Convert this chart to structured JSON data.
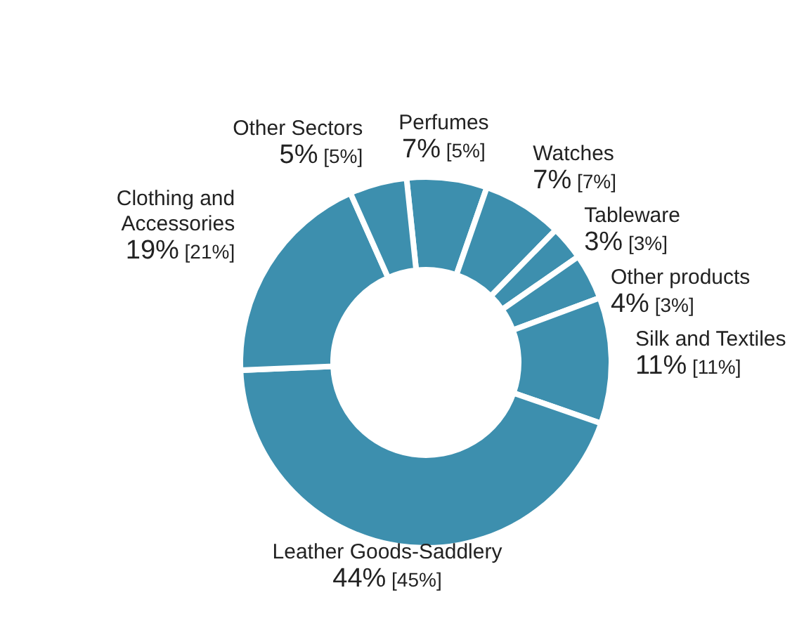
{
  "chart_data": {
    "type": "donut",
    "categories": [
      "Perfumes",
      "Watches",
      "Tableware",
      "Other products",
      "Silk and Textiles",
      "Leather Goods-Saddlery",
      "Clothing and Accessories",
      "Other Sectors"
    ],
    "values": [
      7,
      7,
      3,
      4,
      11,
      44,
      19,
      5
    ],
    "value_labels": [
      "7% [5%]",
      "7% [7%]",
      "3% [3%]",
      "4% [3%]",
      "11% [11%]",
      "44% [45%]",
      "19% [21%]",
      "5% [5%]"
    ],
    "colors": [
      "#3d8fae",
      "#3d8fae",
      "#3d8fae",
      "#3d8fae",
      "#3d8fae",
      "#3d8fae",
      "#3d8fae",
      "#3d8fae"
    ]
  }
}
